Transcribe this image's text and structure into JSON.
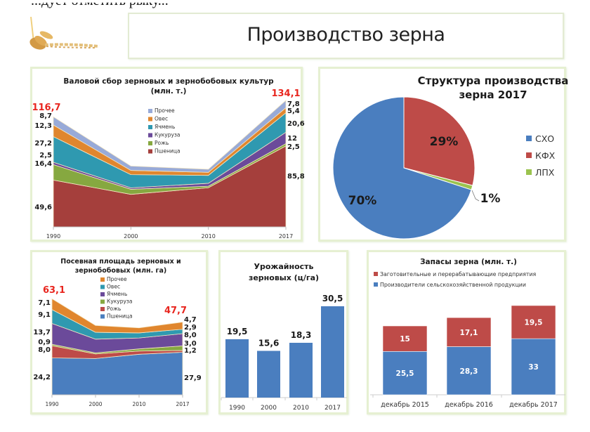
{
  "page": {
    "title": "Производство зерна",
    "top_cut_text": "...дует отметить рыку..."
  },
  "colors": {
    "wheat": "#a53f3c",
    "rye": "#86a840",
    "maize": "#6b4a9a",
    "barley": "#2f99b0",
    "oats": "#e0862e",
    "other": "#98aad8",
    "blue": "#4a7ebf",
    "red": "#be4b48",
    "green": "#9bc34f",
    "highlight": "#e8261f",
    "panel_border": "#e6f0d2"
  },
  "chart_data": [
    {
      "id": "gross_harvest",
      "type": "area",
      "stacked": true,
      "title": "Валовой сбор зерновых и зернобобовых культур",
      "subtitle": "(млн. т.)",
      "categories": [
        "1990",
        "2000",
        "2010",
        "2017"
      ],
      "series": [
        {
          "name": "Пшеница",
          "values": [
            49.6,
            34.5,
            41.5,
            85.8
          ]
        },
        {
          "name": "Рожь",
          "values": [
            16.4,
            5.4,
            1.6,
            2.5
          ]
        },
        {
          "name": "Кукуруза",
          "values": [
            2.5,
            1.5,
            3.1,
            12
          ]
        },
        {
          "name": "Ячмень",
          "values": [
            27.2,
            14.0,
            8.4,
            20.6
          ]
        },
        {
          "name": "Овес",
          "values": [
            12.3,
            4.5,
            3.2,
            5.4
          ]
        },
        {
          "name": "Прочее",
          "values": [
            8.7,
            4.6,
            3.3,
            7.8
          ]
        }
      ],
      "legend": [
        "Прочее",
        "Овес",
        "Ячмень",
        "Кукуруза",
        "Рожь",
        "Пшеница"
      ],
      "left_labels": [
        "49,6",
        "16,4",
        "2,5",
        "27,2",
        "12,3",
        "8,7"
      ],
      "right_labels": [
        "85,8",
        "2,5",
        "12",
        "20,6",
        "5,4",
        "7,8"
      ],
      "total_left": "116,7",
      "total_right": "134,1",
      "ylim": [
        0,
        140
      ]
    },
    {
      "id": "structure_2017",
      "type": "pie",
      "title": "Структура производства",
      "subtitle": "зерна 2017",
      "categories": [
        "СХО",
        "КФХ",
        "ЛПХ"
      ],
      "values": [
        70,
        29,
        1
      ],
      "labels": [
        "70%",
        "29%",
        "1%"
      ]
    },
    {
      "id": "sown_area",
      "type": "area",
      "stacked": true,
      "title": "Посевная площадь зерновых и",
      "subtitle": "зернобобовых (млн. га)",
      "categories": [
        "1990",
        "2000",
        "2010",
        "2017"
      ],
      "series": [
        {
          "name": "Пшеница",
          "values": [
            24.2,
            23.8,
            26.6,
            27.9
          ]
        },
        {
          "name": "Рожь",
          "values": [
            8.0,
            3.0,
            2.1,
            1.2
          ]
        },
        {
          "name": "Кукуруза",
          "values": [
            0.9,
            0.7,
            1.4,
            3.0
          ]
        },
        {
          "name": "Ячмень",
          "values": [
            13.7,
            9.0,
            7.2,
            8.0
          ]
        },
        {
          "name": "Овес",
          "values": [
            9.1,
            4.5,
            3.3,
            2.9
          ]
        },
        {
          "name": "Прочее",
          "values": [
            7.1,
            4.5,
            3.3,
            4.7
          ]
        }
      ],
      "legend": [
        "Прочее",
        "Овес",
        "Ячмень",
        "Кукуруза",
        "Рожь",
        "Пшеница"
      ],
      "left_labels": [
        "24,2",
        "8,0",
        "0,9",
        "13,7",
        "9,1",
        "7,1"
      ],
      "right_labels": [
        "27,9",
        "1,2",
        "3,0",
        "8,0",
        "2,9",
        "4,7"
      ],
      "total_left": "63,1",
      "total_right": "47,7",
      "ylim": [
        0,
        65
      ]
    },
    {
      "id": "yield",
      "type": "bar",
      "title": "Урожайность",
      "subtitle": "зерновых (ц/га)",
      "categories": [
        "1990",
        "2000",
        "2010",
        "2017"
      ],
      "values": [
        19.5,
        15.6,
        18.3,
        30.5
      ],
      "labels": [
        "19,5",
        "15,6",
        "18,3",
        "30,5"
      ],
      "ylim": [
        0,
        31
      ]
    },
    {
      "id": "stocks",
      "type": "bar",
      "stacked": true,
      "title": "Запасы зерна (млн. т.)",
      "categories": [
        "декабрь 2015",
        "декабрь 2016",
        "декабрь 2017"
      ],
      "series": [
        {
          "name": "Производители сельскохозяйственной продукции",
          "values": [
            25.5,
            28.3,
            33
          ],
          "labels": [
            "25,5",
            "28,3",
            "33"
          ]
        },
        {
          "name": "Заготовительные и перерабатывающие предприятия",
          "values": [
            15,
            17.1,
            19.5
          ],
          "labels": [
            "15",
            "17,1",
            "19,5"
          ]
        }
      ],
      "legend": [
        "Заготовительные и перерабатывающие предприятия",
        "Производители сельскохозяйственной продукции"
      ],
      "ylim": [
        0,
        55
      ]
    }
  ]
}
